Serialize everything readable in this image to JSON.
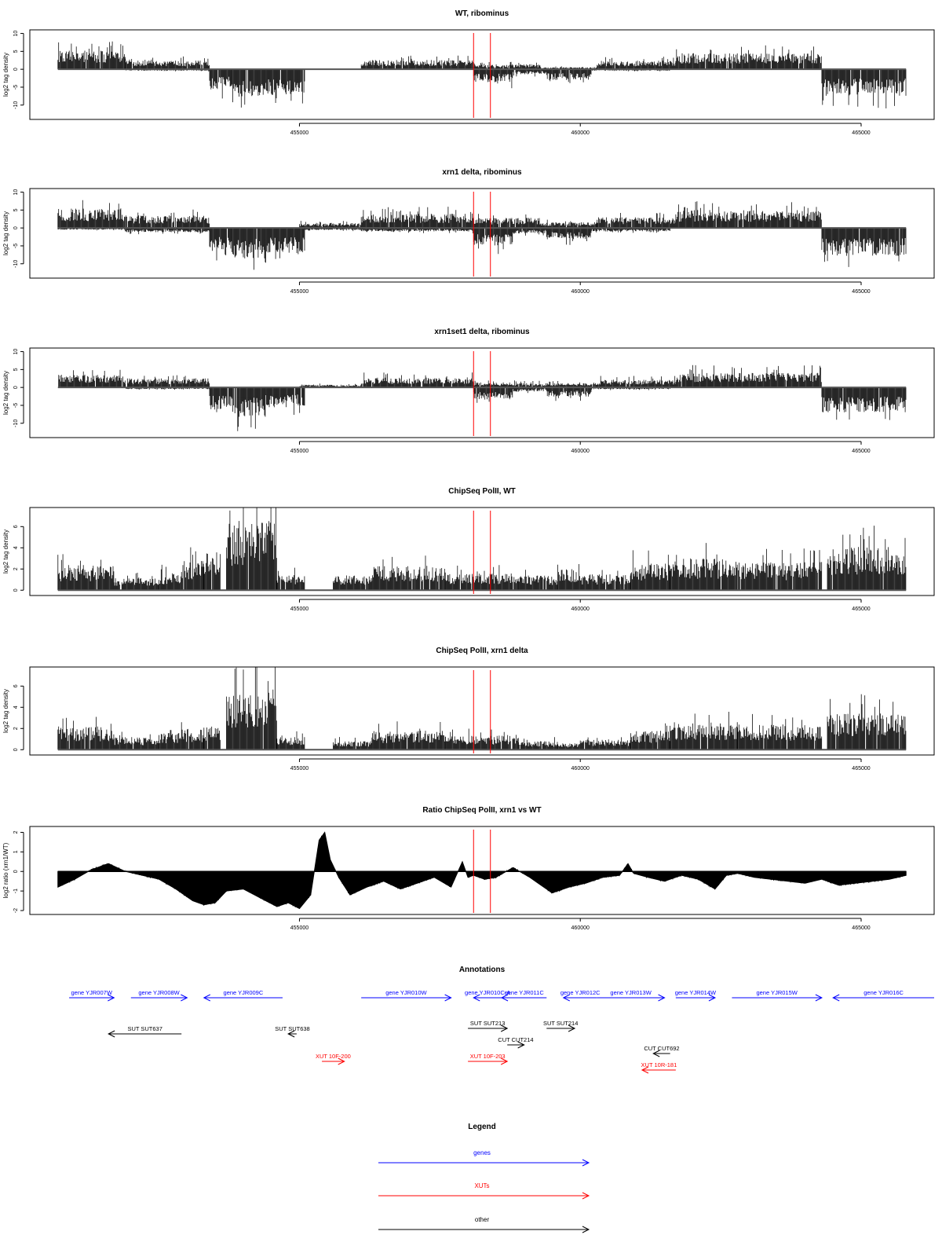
{
  "chart_data": [
    {
      "type": "bar",
      "title": "WT, ribominus",
      "ylabel": "log2 tag density",
      "xlim": [
        450200,
        466300
      ],
      "ylim": [
        -14,
        11
      ],
      "yticks": [
        10,
        5,
        0,
        -5,
        -10
      ],
      "xticks": [
        455000,
        460000,
        465000
      ],
      "markers": [
        458100,
        458400
      ],
      "series": [
        {
          "values": [
            [
              450700,
              451900,
              5.2
            ],
            [
              451900,
              453400,
              2.4
            ],
            [
              456100,
              458100,
              2.6
            ],
            [
              458100,
              459300,
              1.4
            ],
            [
              459300,
              460300,
              0.6
            ],
            [
              460300,
              461700,
              2.4
            ],
            [
              461700,
              464300,
              4.5
            ]
          ]
        },
        {
          "values": [
            [
              451900,
              453400,
              -0.4
            ],
            [
              453400,
              453800,
              -6.0
            ],
            [
              453800,
              454400,
              -8.0
            ],
            [
              454400,
              455100,
              -7.2
            ],
            [
              458100,
              458800,
              -3.6
            ],
            [
              458800,
              459400,
              -1.4
            ],
            [
              459400,
              460200,
              -3.0
            ],
            [
              460200,
              461600,
              -0.4
            ],
            [
              464300,
              465800,
              -7.4
            ]
          ]
        }
      ]
    },
    {
      "type": "bar",
      "title": "xrn1 delta, ribominus",
      "ylabel": "log2 tag density",
      "xlim": [
        450200,
        466300
      ],
      "ylim": [
        -14,
        11
      ],
      "yticks": [
        10,
        5,
        0,
        -5,
        -10
      ],
      "xticks": [
        455000,
        460000,
        465000
      ],
      "markers": [
        458100,
        458400
      ],
      "series": [
        {
          "values": [
            [
              450700,
              451900,
              5.5
            ],
            [
              451900,
              453400,
              3.5
            ],
            [
              455000,
              456100,
              1.4
            ],
            [
              456100,
              458100,
              4.0
            ],
            [
              458100,
              459300,
              2.8
            ],
            [
              459300,
              460300,
              1.6
            ],
            [
              460300,
              461700,
              3.0
            ],
            [
              461700,
              464300,
              5.0
            ]
          ]
        },
        {
          "values": [
            [
              450700,
              451900,
              -0.5
            ],
            [
              451900,
              453400,
              -1.2
            ],
            [
              453400,
              453800,
              -6.6
            ],
            [
              453800,
              454400,
              -8.6
            ],
            [
              454400,
              455100,
              -7.4
            ],
            [
              455100,
              456100,
              -0.6
            ],
            [
              456100,
              458100,
              -1.0
            ],
            [
              458100,
              458800,
              -5.0
            ],
            [
              458800,
              459400,
              -1.6
            ],
            [
              459400,
              460200,
              -3.2
            ],
            [
              460200,
              461600,
              -1.0
            ],
            [
              464300,
              465800,
              -7.8
            ]
          ]
        }
      ]
    },
    {
      "type": "bar",
      "title": "xrn1set1 delta, ribominus",
      "ylabel": "log2 tag density",
      "xlim": [
        450200,
        466300
      ],
      "ylim": [
        -14,
        11
      ],
      "yticks": [
        10,
        5,
        0,
        -5,
        -10
      ],
      "xticks": [
        455000,
        460000,
        465000
      ],
      "markers": [
        458100,
        458400
      ],
      "series": [
        {
          "values": [
            [
              450700,
              451900,
              3.6
            ],
            [
              451900,
              453400,
              2.6
            ],
            [
              455000,
              456100,
              0.8
            ],
            [
              456100,
              458100,
              2.8
            ],
            [
              458100,
              459300,
              1.4
            ],
            [
              459300,
              460300,
              1.2
            ],
            [
              460300,
              461700,
              2.2
            ],
            [
              461700,
              464300,
              4.2
            ]
          ]
        },
        {
          "values": [
            [
              451900,
              453400,
              -0.5
            ],
            [
              453400,
              453800,
              -6.2
            ],
            [
              453800,
              454400,
              -8.2
            ],
            [
              454400,
              455100,
              -5.6
            ],
            [
              458100,
              458800,
              -3.4
            ],
            [
              458800,
              459400,
              -1.2
            ],
            [
              459400,
              460200,
              -2.6
            ],
            [
              460200,
              461600,
              -0.5
            ],
            [
              464300,
              465800,
              -7.0
            ]
          ]
        }
      ]
    },
    {
      "type": "bar",
      "title": "ChipSeq PolII, WT",
      "ylabel": "log2 tag density",
      "xlim": [
        450200,
        466300
      ],
      "ylim": [
        -0.5,
        7.8
      ],
      "yticks": [
        0,
        2,
        4,
        6
      ],
      "xticks": [
        455000,
        460000,
        465000
      ],
      "markers": [
        458100,
        458400
      ],
      "series": [
        {
          "values": [
            [
              450700,
              451700,
              2.4
            ],
            [
              451700,
              452500,
              1.2
            ],
            [
              452500,
              452900,
              1.6
            ],
            [
              452900,
              453300,
              2.8
            ],
            [
              453300,
              453600,
              3.6
            ],
            [
              453700,
              454600,
              6.6
            ],
            [
              454600,
              455100,
              1.5
            ],
            [
              455600,
              456300,
              1.4
            ],
            [
              456300,
              457600,
              2.3
            ],
            [
              457600,
              458900,
              1.6
            ],
            [
              458900,
              459600,
              1.4
            ],
            [
              459600,
              460000,
              2.0
            ],
            [
              460000,
              460900,
              1.5
            ],
            [
              460900,
              461600,
              2.6
            ],
            [
              461600,
              462800,
              3.0
            ],
            [
              462800,
              464300,
              2.7
            ],
            [
              464400,
              465800,
              4.1
            ]
          ]
        }
      ]
    },
    {
      "type": "bar",
      "title": "ChipSeq PolII, xrn1 delta",
      "ylabel": "log2 tag density",
      "xlim": [
        450200,
        466300
      ],
      "ylim": [
        -0.5,
        7.8
      ],
      "yticks": [
        0,
        2,
        4,
        6
      ],
      "xticks": [
        455000,
        460000,
        465000
      ],
      "markers": [
        458100,
        458400
      ],
      "series": [
        {
          "values": [
            [
              450700,
              451700,
              2.2
            ],
            [
              451700,
              452500,
              1.2
            ],
            [
              452500,
              452900,
              1.6
            ],
            [
              452900,
              453300,
              2.0
            ],
            [
              453300,
              453600,
              2.4
            ],
            [
              453700,
              454600,
              5.8
            ],
            [
              454600,
              455100,
              1.2
            ],
            [
              455600,
              456300,
              0.8
            ],
            [
              456300,
              457600,
              1.8
            ],
            [
              457600,
              458900,
              1.4
            ],
            [
              458900,
              459600,
              0.8
            ],
            [
              459600,
              460000,
              0.6
            ],
            [
              460000,
              460900,
              1.0
            ],
            [
              460900,
              461600,
              1.8
            ],
            [
              461600,
              462800,
              2.6
            ],
            [
              462800,
              464300,
              2.4
            ],
            [
              464400,
              465800,
              3.6
            ]
          ]
        }
      ]
    },
    {
      "type": "area",
      "title": "Ratio ChipSeq PolII, xrn1 vs WT",
      "ylabel": "log2 ratio (xrn1/WT)",
      "xlim": [
        450200,
        466300
      ],
      "ylim": [
        -2.2,
        2.3
      ],
      "yticks": [
        2,
        1,
        0,
        -1,
        -2
      ],
      "xticks": [
        455000,
        460000,
        465000
      ],
      "markers": [
        458100,
        458400
      ],
      "x": [
        450700,
        451000,
        451300,
        451600,
        451900,
        452200,
        452500,
        452800,
        453100,
        453300,
        453500,
        453700,
        454000,
        454200,
        454400,
        454600,
        454800,
        455000,
        455200,
        455350,
        455450,
        455550,
        455700,
        455900,
        456200,
        456500,
        456800,
        457100,
        457400,
        457700,
        457900,
        458000,
        458100,
        458300,
        458500,
        458800,
        459100,
        459300,
        459500,
        459800,
        460100,
        460400,
        460700,
        460850,
        460950,
        461200,
        461500,
        461800,
        462100,
        462400,
        462600,
        462800,
        463100,
        463400,
        463700,
        464000,
        464300,
        464600,
        464900,
        465200,
        465500,
        465800
      ],
      "values": [
        -0.8,
        -0.4,
        0.1,
        0.4,
        0.0,
        -0.2,
        -0.4,
        -0.9,
        -1.5,
        -1.7,
        -1.6,
        -1.0,
        -0.9,
        -1.2,
        -1.5,
        -1.8,
        -1.6,
        -1.9,
        -1.2,
        1.6,
        2.0,
        0.6,
        -0.3,
        -1.2,
        -0.8,
        -0.5,
        -0.9,
        -0.6,
        -0.3,
        -0.8,
        0.5,
        -0.3,
        -0.2,
        -0.4,
        -0.3,
        0.2,
        -0.3,
        -0.7,
        -1.1,
        -0.8,
        -0.6,
        -0.3,
        -0.2,
        0.4,
        -0.1,
        -0.3,
        -0.5,
        -0.2,
        -0.4,
        -0.9,
        -0.2,
        -0.1,
        -0.3,
        -0.4,
        -0.5,
        -0.6,
        -0.4,
        -0.7,
        -0.6,
        -0.5,
        -0.4,
        -0.2
      ]
    }
  ],
  "annotations": {
    "title": "Annotations",
    "features": [
      {
        "label": "gene YJR007W",
        "type": "gene",
        "strand": "+",
        "start": 450900,
        "end": 451700,
        "row": 0
      },
      {
        "label": "gene YJR008W",
        "type": "gene",
        "strand": "+",
        "start": 452000,
        "end": 453000,
        "row": 0
      },
      {
        "label": "gene YJR009C",
        "type": "gene",
        "strand": "-",
        "start": 453300,
        "end": 454700,
        "row": 0
      },
      {
        "label": "gene YJR010W",
        "type": "gene",
        "strand": "+",
        "start": 456100,
        "end": 457700,
        "row": 0
      },
      {
        "label": "gene YJR010C-A",
        "type": "gene",
        "strand": "-",
        "start": 458100,
        "end": 458600,
        "row": 0
      },
      {
        "label": "gene YJR011C",
        "type": "gene",
        "strand": "-",
        "start": 458600,
        "end": 459400,
        "row": 0
      },
      {
        "label": "gene YJR012C",
        "type": "gene",
        "strand": "-",
        "start": 459700,
        "end": 460300,
        "row": 0
      },
      {
        "label": "gene YJR013W",
        "type": "gene",
        "strand": "+",
        "start": 460300,
        "end": 461500,
        "row": 0
      },
      {
        "label": "gene YJR014W",
        "type": "gene",
        "strand": "+",
        "start": 461700,
        "end": 462400,
        "row": 0
      },
      {
        "label": "gene YJR015W",
        "type": "gene",
        "strand": "+",
        "start": 462700,
        "end": 464300,
        "row": 0
      },
      {
        "label": "gene YJR016C",
        "type": "gene",
        "strand": "-",
        "start": 464500,
        "end": 466300,
        "row": 0
      },
      {
        "label": "SUT SUT637",
        "type": "other",
        "strand": "-",
        "start": 451600,
        "end": 452900,
        "row": 2
      },
      {
        "label": "SUT SUT638",
        "type": "other",
        "strand": "-",
        "start": 454800,
        "end": 454950,
        "row": 2
      },
      {
        "label": "SUT SUT213",
        "type": "other",
        "strand": "+",
        "start": 458000,
        "end": 458700,
        "row": 1
      },
      {
        "label": "SUT SUT214",
        "type": "other",
        "strand": "+",
        "start": 459400,
        "end": 459900,
        "row": 1
      },
      {
        "label": "CUT CUT214",
        "type": "other",
        "strand": "+",
        "start": 458700,
        "end": 459000,
        "row": 3
      },
      {
        "label": "CUT CUT692",
        "type": "other",
        "strand": "-",
        "start": 461300,
        "end": 461600,
        "row": 4
      },
      {
        "label": "XUT 10F-200",
        "type": "xut",
        "strand": "+",
        "start": 455400,
        "end": 455800,
        "row": 5
      },
      {
        "label": "XUT 10F-203",
        "type": "xut",
        "strand": "+",
        "start": 458000,
        "end": 458700,
        "row": 5
      },
      {
        "label": "XUT 10R-181",
        "type": "xut",
        "strand": "-",
        "start": 461100,
        "end": 461700,
        "row": 6
      }
    ]
  },
  "legend": {
    "title": "Legend",
    "items": [
      {
        "label": "genes",
        "color": "#0000ff"
      },
      {
        "label": "XUTs",
        "color": "#ff0000"
      },
      {
        "label": "other",
        "color": "#000000"
      }
    ]
  },
  "colors": {
    "gene": "#0000ff",
    "xut": "#ff0000",
    "other": "#000000",
    "marker": "#ff0000",
    "data": "#000000"
  }
}
